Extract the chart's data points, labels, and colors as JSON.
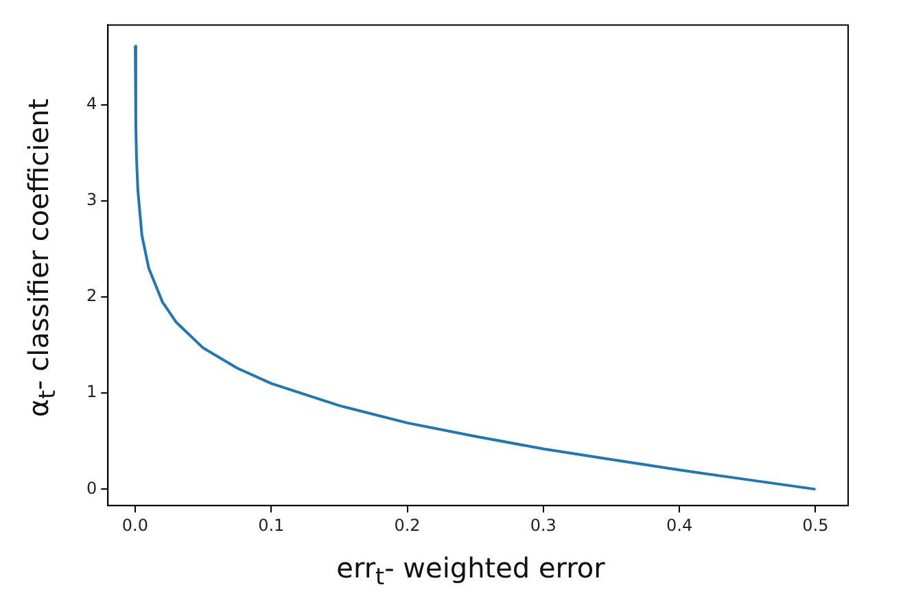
{
  "chart_data": {
    "type": "line",
    "xlabel": "err$_{t}$- weighted error",
    "ylabel": "α$_{t}$- classifier coefficient",
    "x": [
      0.0001,
      0.0005,
      0.001,
      0.002,
      0.005,
      0.01,
      0.02,
      0.03,
      0.05,
      0.075,
      0.1,
      0.15,
      0.2,
      0.25,
      0.3,
      0.35,
      0.4,
      0.45,
      0.5
    ],
    "series": [
      {
        "color": "#1f77b4",
        "values": [
          4.61,
          3.8,
          3.45,
          3.11,
          2.64,
          2.3,
          1.95,
          1.74,
          1.47,
          1.26,
          1.1,
          0.87,
          0.69,
          0.55,
          0.42,
          0.31,
          0.2,
          0.1,
          0
        ]
      }
    ],
    "xlim": [
      -0.02,
      0.524
    ],
    "ylim": [
      -0.17,
      4.83
    ],
    "xticks": [
      {
        "value": 0,
        "label": "0.0"
      },
      0.1,
      0.2,
      0.3,
      0.4,
      0.5
    ],
    "yticks": [
      0,
      1,
      2,
      3,
      4
    ],
    "grid": false,
    "legend": false
  }
}
